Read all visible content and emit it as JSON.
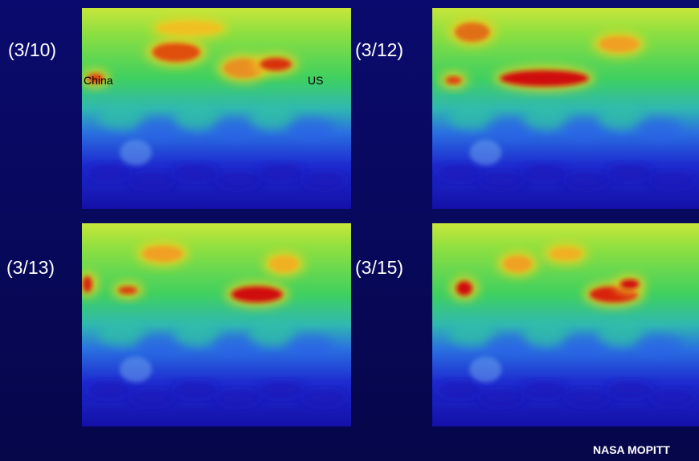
{
  "slide": {
    "panels": [
      {
        "label": "(3/10)"
      },
      {
        "label": "(3/12)"
      },
      {
        "label": "(3/13)"
      },
      {
        "label": "(3/15)"
      }
    ],
    "annotations": {
      "china": "China",
      "us": "US"
    },
    "credit": "NASA MOPITT"
  }
}
